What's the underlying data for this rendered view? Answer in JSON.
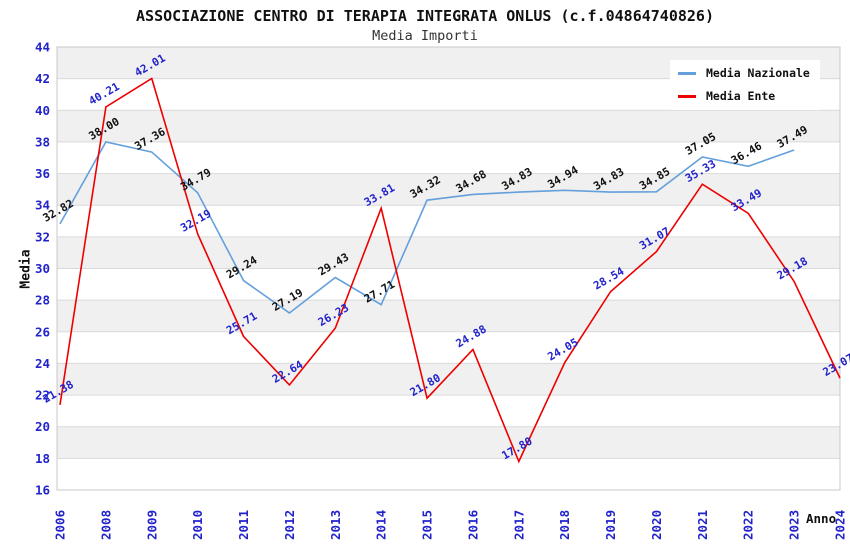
{
  "header": {
    "title": "ASSOCIAZIONE CENTRO DI TERAPIA INTEGRATA ONLUS (c.f.04864740826)",
    "subtitle": "Media Importi"
  },
  "axes": {
    "y_title": "Media",
    "x_title": "Anno"
  },
  "legend": {
    "items": [
      {
        "label": "Media Nazionale",
        "color": "#64a0dc"
      },
      {
        "label": "Media Ente",
        "color": "#ee0000"
      }
    ]
  },
  "colors": {
    "tick_label": "#2323cc",
    "band": "#f0f0f0",
    "band_alt": "#ffffff",
    "grid": "#dadada",
    "plot_border": "#c8c8c8",
    "nazionale_line": "#64a0dc",
    "ente_line": "#ee0000",
    "nazionale_point_label": "#111111",
    "ente_point_label": "#2323cc"
  },
  "chart_data": {
    "type": "line",
    "title": "ASSOCIAZIONE CENTRO DI TERAPIA INTEGRATA ONLUS (c.f.04864740826)",
    "subtitle": "Media Importi",
    "xlabel": "Anno",
    "ylabel": "Media",
    "ylim": [
      16,
      44
    ],
    "ytick_step": 2,
    "yticks": [
      44,
      42,
      40,
      38,
      36,
      34,
      32,
      30,
      28,
      26,
      24,
      22,
      20,
      18,
      16
    ],
    "grid": true,
    "bands": "alternating-horizontal",
    "legend_position": "top-right",
    "point_labels": "values shown at each point, rotated",
    "categories": [
      "2006",
      "2008",
      "2009",
      "2010",
      "2011",
      "2012",
      "2013",
      "2014",
      "2015",
      "2016",
      "2017",
      "2018",
      "2019",
      "2020",
      "2021",
      "2022",
      "2023",
      "2024"
    ],
    "series": [
      {
        "name": "Media Nazionale",
        "color": "#64a0dc",
        "label_color": "#111111",
        "values": [
          32.82,
          38.0,
          37.36,
          34.79,
          29.24,
          27.19,
          29.43,
          27.71,
          34.32,
          34.68,
          34.83,
          34.94,
          34.83,
          34.85,
          37.05,
          36.46,
          37.49,
          null
        ]
      },
      {
        "name": "Media Ente",
        "color": "#ee0000",
        "label_color": "#2323cc",
        "values": [
          21.38,
          40.21,
          42.01,
          32.19,
          25.71,
          22.64,
          26.23,
          33.81,
          21.8,
          24.88,
          17.8,
          24.05,
          28.54,
          31.07,
          35.33,
          33.49,
          29.18,
          23.07
        ]
      }
    ]
  }
}
